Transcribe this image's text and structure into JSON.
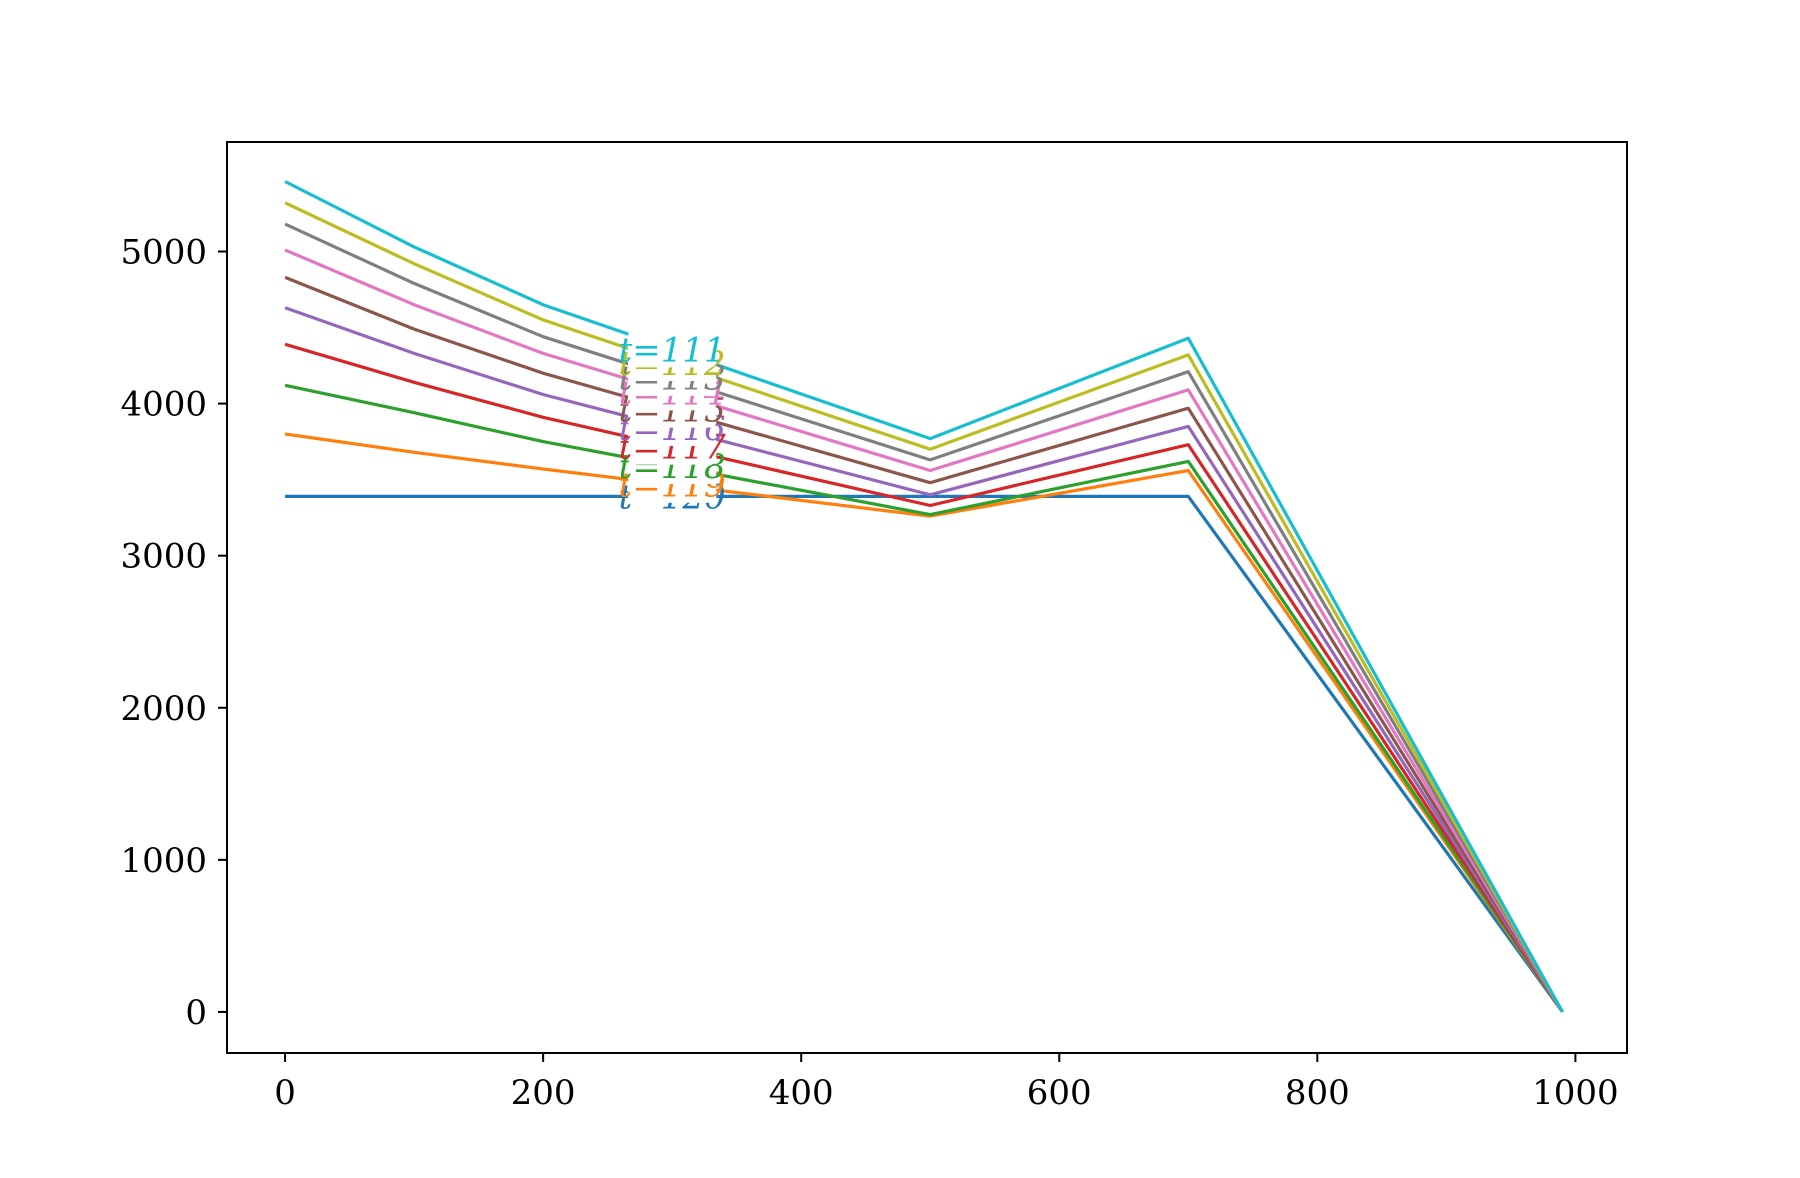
{
  "chart_data": {
    "type": "line",
    "title": "",
    "xlabel": "",
    "ylabel": "",
    "xlim": [
      -45,
      1040
    ],
    "ylim": [
      -270,
      5720
    ],
    "x_ticks": [
      0,
      200,
      400,
      600,
      800,
      1000
    ],
    "y_ticks": [
      0,
      1000,
      2000,
      3000,
      4000,
      5000
    ],
    "x_tick_labels": [
      "0",
      "200",
      "400",
      "600",
      "800",
      "1000"
    ],
    "y_tick_labels": [
      "0",
      "1000",
      "2000",
      "3000",
      "4000",
      "5000"
    ],
    "grid": false,
    "x": [
      0,
      100,
      200,
      500,
      700,
      990
    ],
    "series": [
      {
        "name": "t=120",
        "color": "#1f77b4",
        "values": [
          3390,
          3390,
          3390,
          3390,
          3390,
          0
        ]
      },
      {
        "name": "t=119",
        "color": "#ff7f0e",
        "values": [
          3800,
          3680,
          3570,
          3260,
          3560,
          0
        ]
      },
      {
        "name": "t=118",
        "color": "#2ca02c",
        "values": [
          4120,
          3940,
          3750,
          3270,
          3620,
          0
        ]
      },
      {
        "name": "t=117",
        "color": "#d62728",
        "values": [
          4390,
          4140,
          3910,
          3330,
          3730,
          0
        ]
      },
      {
        "name": "t=116",
        "color": "#9467bd",
        "values": [
          4630,
          4330,
          4060,
          3400,
          3850,
          0
        ]
      },
      {
        "name": "t=115",
        "color": "#8c564b",
        "values": [
          4830,
          4490,
          4200,
          3480,
          3970,
          0
        ]
      },
      {
        "name": "t=114",
        "color": "#e377c2",
        "values": [
          5010,
          4650,
          4330,
          3560,
          4090,
          0
        ]
      },
      {
        "name": "t=113",
        "color": "#7f7f7f",
        "values": [
          5180,
          4790,
          4440,
          3630,
          4210,
          0
        ]
      },
      {
        "name": "t=112",
        "color": "#bcbd22",
        "values": [
          5320,
          4920,
          4550,
          3700,
          4320,
          0
        ]
      },
      {
        "name": "t=111",
        "color": "#17becf",
        "values": [
          5460,
          5030,
          4650,
          3770,
          4430,
          0
        ]
      }
    ],
    "inline_labels": {
      "x": 300
    }
  }
}
